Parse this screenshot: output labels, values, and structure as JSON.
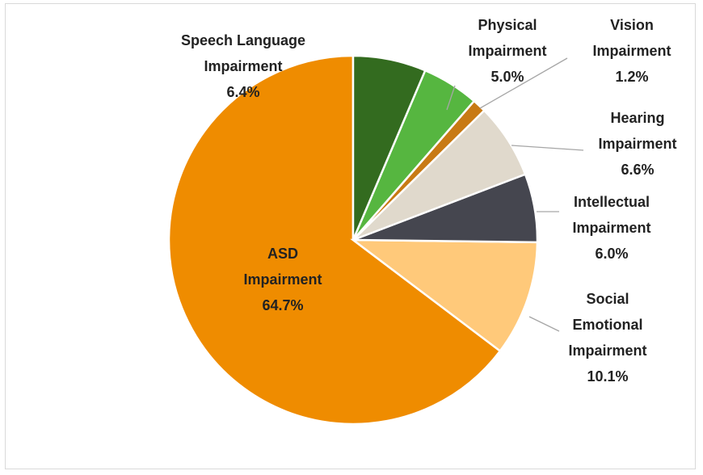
{
  "chart_data": {
    "type": "pie",
    "categories": [
      "Speech Language Impairment",
      "Physical Impairment",
      "Vision Impairment",
      "Hearing Impairment",
      "Intellectual Impairment",
      "Social Emotional Impairment",
      "ASD Impairment"
    ],
    "values": [
      6.4,
      5.0,
      1.2,
      6.6,
      6.0,
      10.1,
      64.7
    ],
    "value_labels": [
      "6.4%",
      "5.0%",
      "1.2%",
      "6.6%",
      "6.0%",
      "10.1%",
      "64.7%"
    ],
    "colors": [
      "#336b1f",
      "#56b640",
      "#c87a14",
      "#e0d9cc",
      "#45464f",
      "#ffc97a",
      "#ef8c00"
    ]
  }
}
